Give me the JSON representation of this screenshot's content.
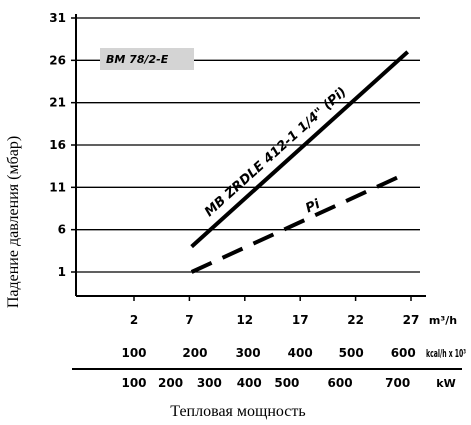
{
  "chart_data": {
    "type": "line",
    "model_label": "BM 78/2-E",
    "ylabel": "Падение давления (мбар)",
    "xlabel": "Тепловая мощность",
    "x_unit": "m³/h",
    "ylim": [
      1,
      31
    ],
    "yticks": [
      1,
      6,
      11,
      16,
      21,
      26,
      31
    ],
    "xlim": [
      0,
      30
    ],
    "xticks": [
      2,
      7,
      12,
      17,
      22,
      27
    ],
    "grid": true,
    "scale_kcal": {
      "unit": "kcal/h x 10³",
      "ticks": [
        {
          "label": "100",
          "x": 2
        },
        {
          "label": "200",
          "x": 7.5
        },
        {
          "label": "300",
          "x": 12.3
        },
        {
          "label": "400",
          "x": 17
        },
        {
          "label": "500",
          "x": 21.6
        },
        {
          "label": "600",
          "x": 26.3
        }
      ]
    },
    "scale_kw": {
      "unit": "kW",
      "ticks": [
        {
          "label": "100",
          "x": 2
        },
        {
          "label": "200",
          "x": 5.3
        },
        {
          "label": "300",
          "x": 8.8
        },
        {
          "label": "400",
          "x": 12.4
        },
        {
          "label": "500",
          "x": 15.8
        },
        {
          "label": "600",
          "x": 20.6
        },
        {
          "label": "700",
          "x": 25.8
        }
      ]
    },
    "series": [
      {
        "name": "MB ZRDLE 412-1 1/4\" (Pi)",
        "style": "solid",
        "x": [
          7.2,
          26.7
        ],
        "y": [
          4,
          27
        ]
      },
      {
        "name": "Pi",
        "style": "dashed",
        "x": [
          7.2,
          26.0
        ],
        "y": [
          1,
          12.3
        ]
      }
    ]
  }
}
